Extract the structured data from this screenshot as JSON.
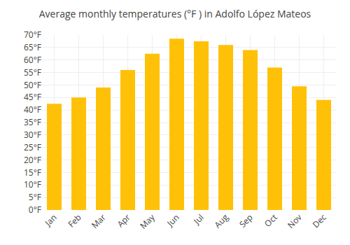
{
  "chart_data": {
    "type": "bar",
    "title": "Average monthly temperatures (°F ) in Adolfo López Mateos",
    "categories": [
      "Jan",
      "Feb",
      "Mar",
      "Apr",
      "May",
      "Jun",
      "Jul",
      "Aug",
      "Sep",
      "Oct",
      "Nov",
      "Dec"
    ],
    "values": [
      42.5,
      45.0,
      49.0,
      56.0,
      62.5,
      68.5,
      67.5,
      66.0,
      64.0,
      57.0,
      49.5,
      44.0
    ],
    "color": "#FFC107",
    "ylim": [
      0,
      70
    ],
    "yticks": [
      {
        "value": 0,
        "label": "0°F"
      },
      {
        "value": 5,
        "label": "5°F"
      },
      {
        "value": 10,
        "label": "10°F"
      },
      {
        "value": 15,
        "label": "15°F"
      },
      {
        "value": 20,
        "label": "20°F"
      },
      {
        "value": 25,
        "label": "25°F"
      },
      {
        "value": 30,
        "label": "30°F"
      },
      {
        "value": 35,
        "label": "35°F"
      },
      {
        "value": 40,
        "label": "40°F"
      },
      {
        "value": 45,
        "label": "45°F"
      },
      {
        "value": 50,
        "label": "50°F"
      },
      {
        "value": 55,
        "label": "55°F"
      },
      {
        "value": 60,
        "label": "60°F"
      },
      {
        "value": 65,
        "label": "65°F"
      },
      {
        "value": 70,
        "label": "70°F"
      }
    ],
    "grid": true
  }
}
